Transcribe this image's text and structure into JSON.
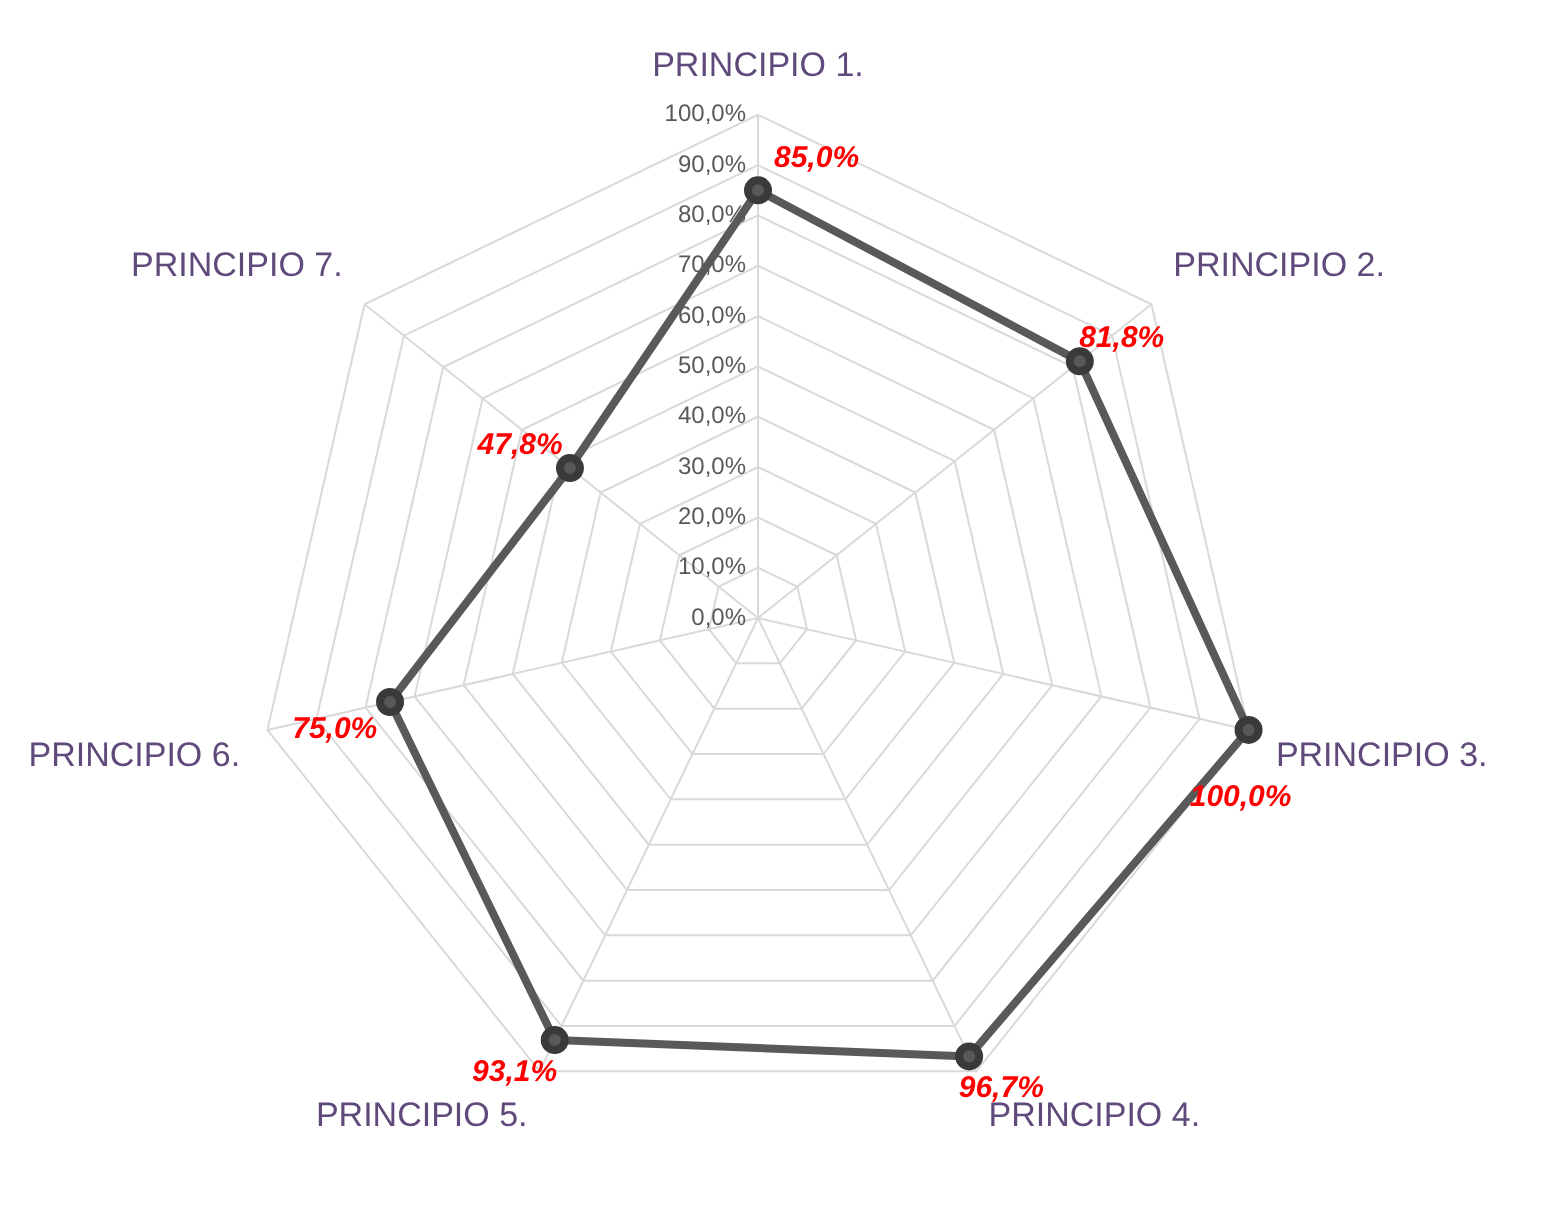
{
  "chart_data": {
    "type": "radar",
    "categories": [
      "PRINCIPIO 1.",
      "PRINCIPIO 2.",
      "PRINCIPIO 3.",
      "PRINCIPIO 4.",
      "PRINCIPIO 5.",
      "PRINCIPIO 6.",
      "PRINCIPIO 7."
    ],
    "series": [
      {
        "color": "#595959",
        "values": [
          85.0,
          81.8,
          100.0,
          96.7,
          93.1,
          75.0,
          47.8
        ],
        "value_labels": [
          "85,0%",
          "81,8%",
          "100,0%",
          "96,7%",
          "93,1%",
          "75,0%",
          "47,8%"
        ]
      }
    ],
    "ylim": [
      0,
      100
    ],
    "yticks": [
      {
        "value": 0,
        "label": "0,0%"
      },
      {
        "value": 10,
        "label": "10,0%"
      },
      {
        "value": 20,
        "label": "20,0%"
      },
      {
        "value": 30,
        "label": "30,0%"
      },
      {
        "value": 40,
        "label": "40,0%"
      },
      {
        "value": 50,
        "label": "50,0%"
      },
      {
        "value": 60,
        "label": "60,0%"
      },
      {
        "value": 70,
        "label": "70,0%"
      },
      {
        "value": 80,
        "label": "80,0%"
      },
      {
        "value": 90,
        "label": "90,0%"
      },
      {
        "value": 100,
        "label": "100,0%"
      }
    ],
    "grid": true,
    "legend": false,
    "marker": "circle",
    "line_style": "solid"
  }
}
